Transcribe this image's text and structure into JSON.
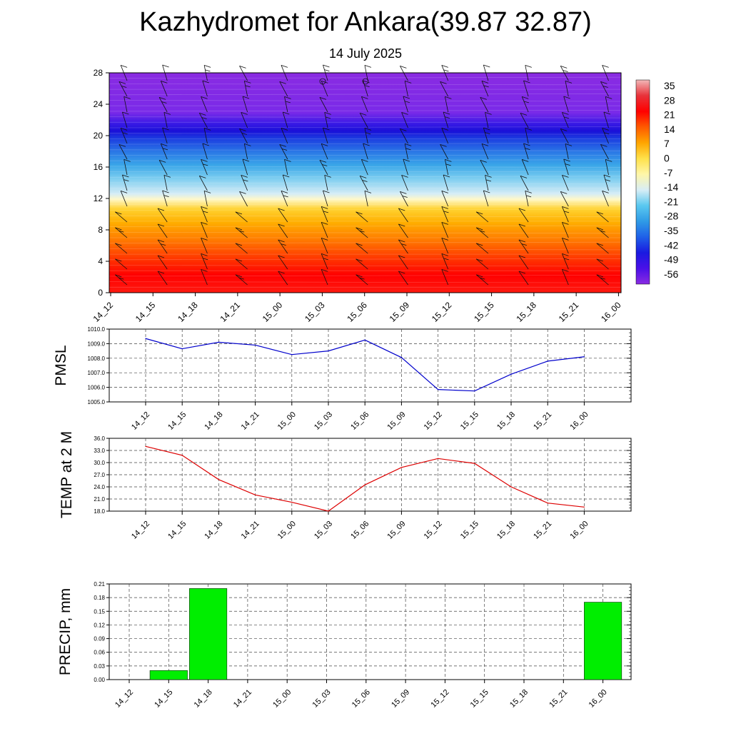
{
  "header": {
    "title": "Kazhydromet for Ankara(39.87 32.87)",
    "subtitle": "14 July 2025"
  },
  "chart_data": [
    {
      "type": "heatmap",
      "time_labels": [
        "14_12",
        "14_15",
        "14_18",
        "14_21",
        "15_00",
        "15_03",
        "15_06",
        "15_09",
        "15_12",
        "15_15",
        "15_18",
        "15_21",
        "16_00"
      ],
      "y_ticks": [
        0,
        4,
        8,
        12,
        16,
        20,
        24,
        28
      ],
      "ylim": [
        0,
        28
      ],
      "colorbar_labels": [
        "35",
        "28",
        "21",
        "14",
        "7",
        "0",
        "-7",
        "-14",
        "-21",
        "-28",
        "-35",
        "-42",
        "-49",
        "-56"
      ],
      "color_stops": [
        "#f2b8b8",
        "#e8323a",
        "#ff0000",
        "#ff5a00",
        "#ffa500",
        "#ffe14a",
        "#fff6a8",
        "#d8eef6",
        "#5ac8f0",
        "#2f9be6",
        "#1f60e8",
        "#1a1ae0",
        "#4a10e8",
        "#8a2be2"
      ]
    },
    {
      "type": "line",
      "ylabel": "PMSL",
      "ylim": [
        1005.0,
        1010.0
      ],
      "y_ticks": [
        "1005.0",
        "1006.0",
        "1007.0",
        "1008.0",
        "1009.0",
        "1010.0"
      ],
      "categories": [
        "14_12",
        "14_15",
        "14_18",
        "14_21",
        "15_00",
        "15_03",
        "15_06",
        "15_09",
        "15_12",
        "15_15",
        "15_18",
        "15_21",
        "16_00"
      ],
      "values": [
        1009.35,
        1008.65,
        1009.1,
        1008.9,
        1008.25,
        1008.5,
        1009.25,
        1008.05,
        1005.85,
        1005.75,
        1006.9,
        1007.8,
        1008.1
      ],
      "color": "#0000cc"
    },
    {
      "type": "line",
      "ylabel": "TEMP at 2 M",
      "ylim": [
        18.0,
        36.0
      ],
      "y_ticks": [
        "18.0",
        "21.0",
        "24.0",
        "27.0",
        "30.0",
        "33.0",
        "36.0"
      ],
      "categories": [
        "14_12",
        "14_15",
        "14_18",
        "14_21",
        "15_00",
        "15_03",
        "15_06",
        "15_09",
        "15_12",
        "15_15",
        "15_18",
        "15_21",
        "16_00"
      ],
      "values": [
        34.0,
        31.8,
        25.8,
        22.0,
        20.2,
        18.0,
        24.5,
        28.8,
        31.0,
        29.8,
        24.0,
        20.0,
        19.0
      ],
      "color": "#dd0000"
    },
    {
      "type": "bar",
      "ylabel": "PRECIP, mm",
      "ylim": [
        0,
        0.21
      ],
      "y_ticks": [
        "0.00",
        "0.03",
        "0.06",
        "0.09",
        "0.12",
        "0.15",
        "0.18",
        "0.21"
      ],
      "categories": [
        "14_12",
        "14_15",
        "14_18",
        "14_21",
        "15_00",
        "15_03",
        "15_06",
        "15_09",
        "15_12",
        "15_15",
        "15_18",
        "15_21",
        "16_00"
      ],
      "values": [
        0,
        0.02,
        0.2,
        0,
        0,
        0,
        0,
        0,
        0,
        0,
        0,
        0,
        0.17
      ],
      "color": "#00ee00"
    }
  ]
}
